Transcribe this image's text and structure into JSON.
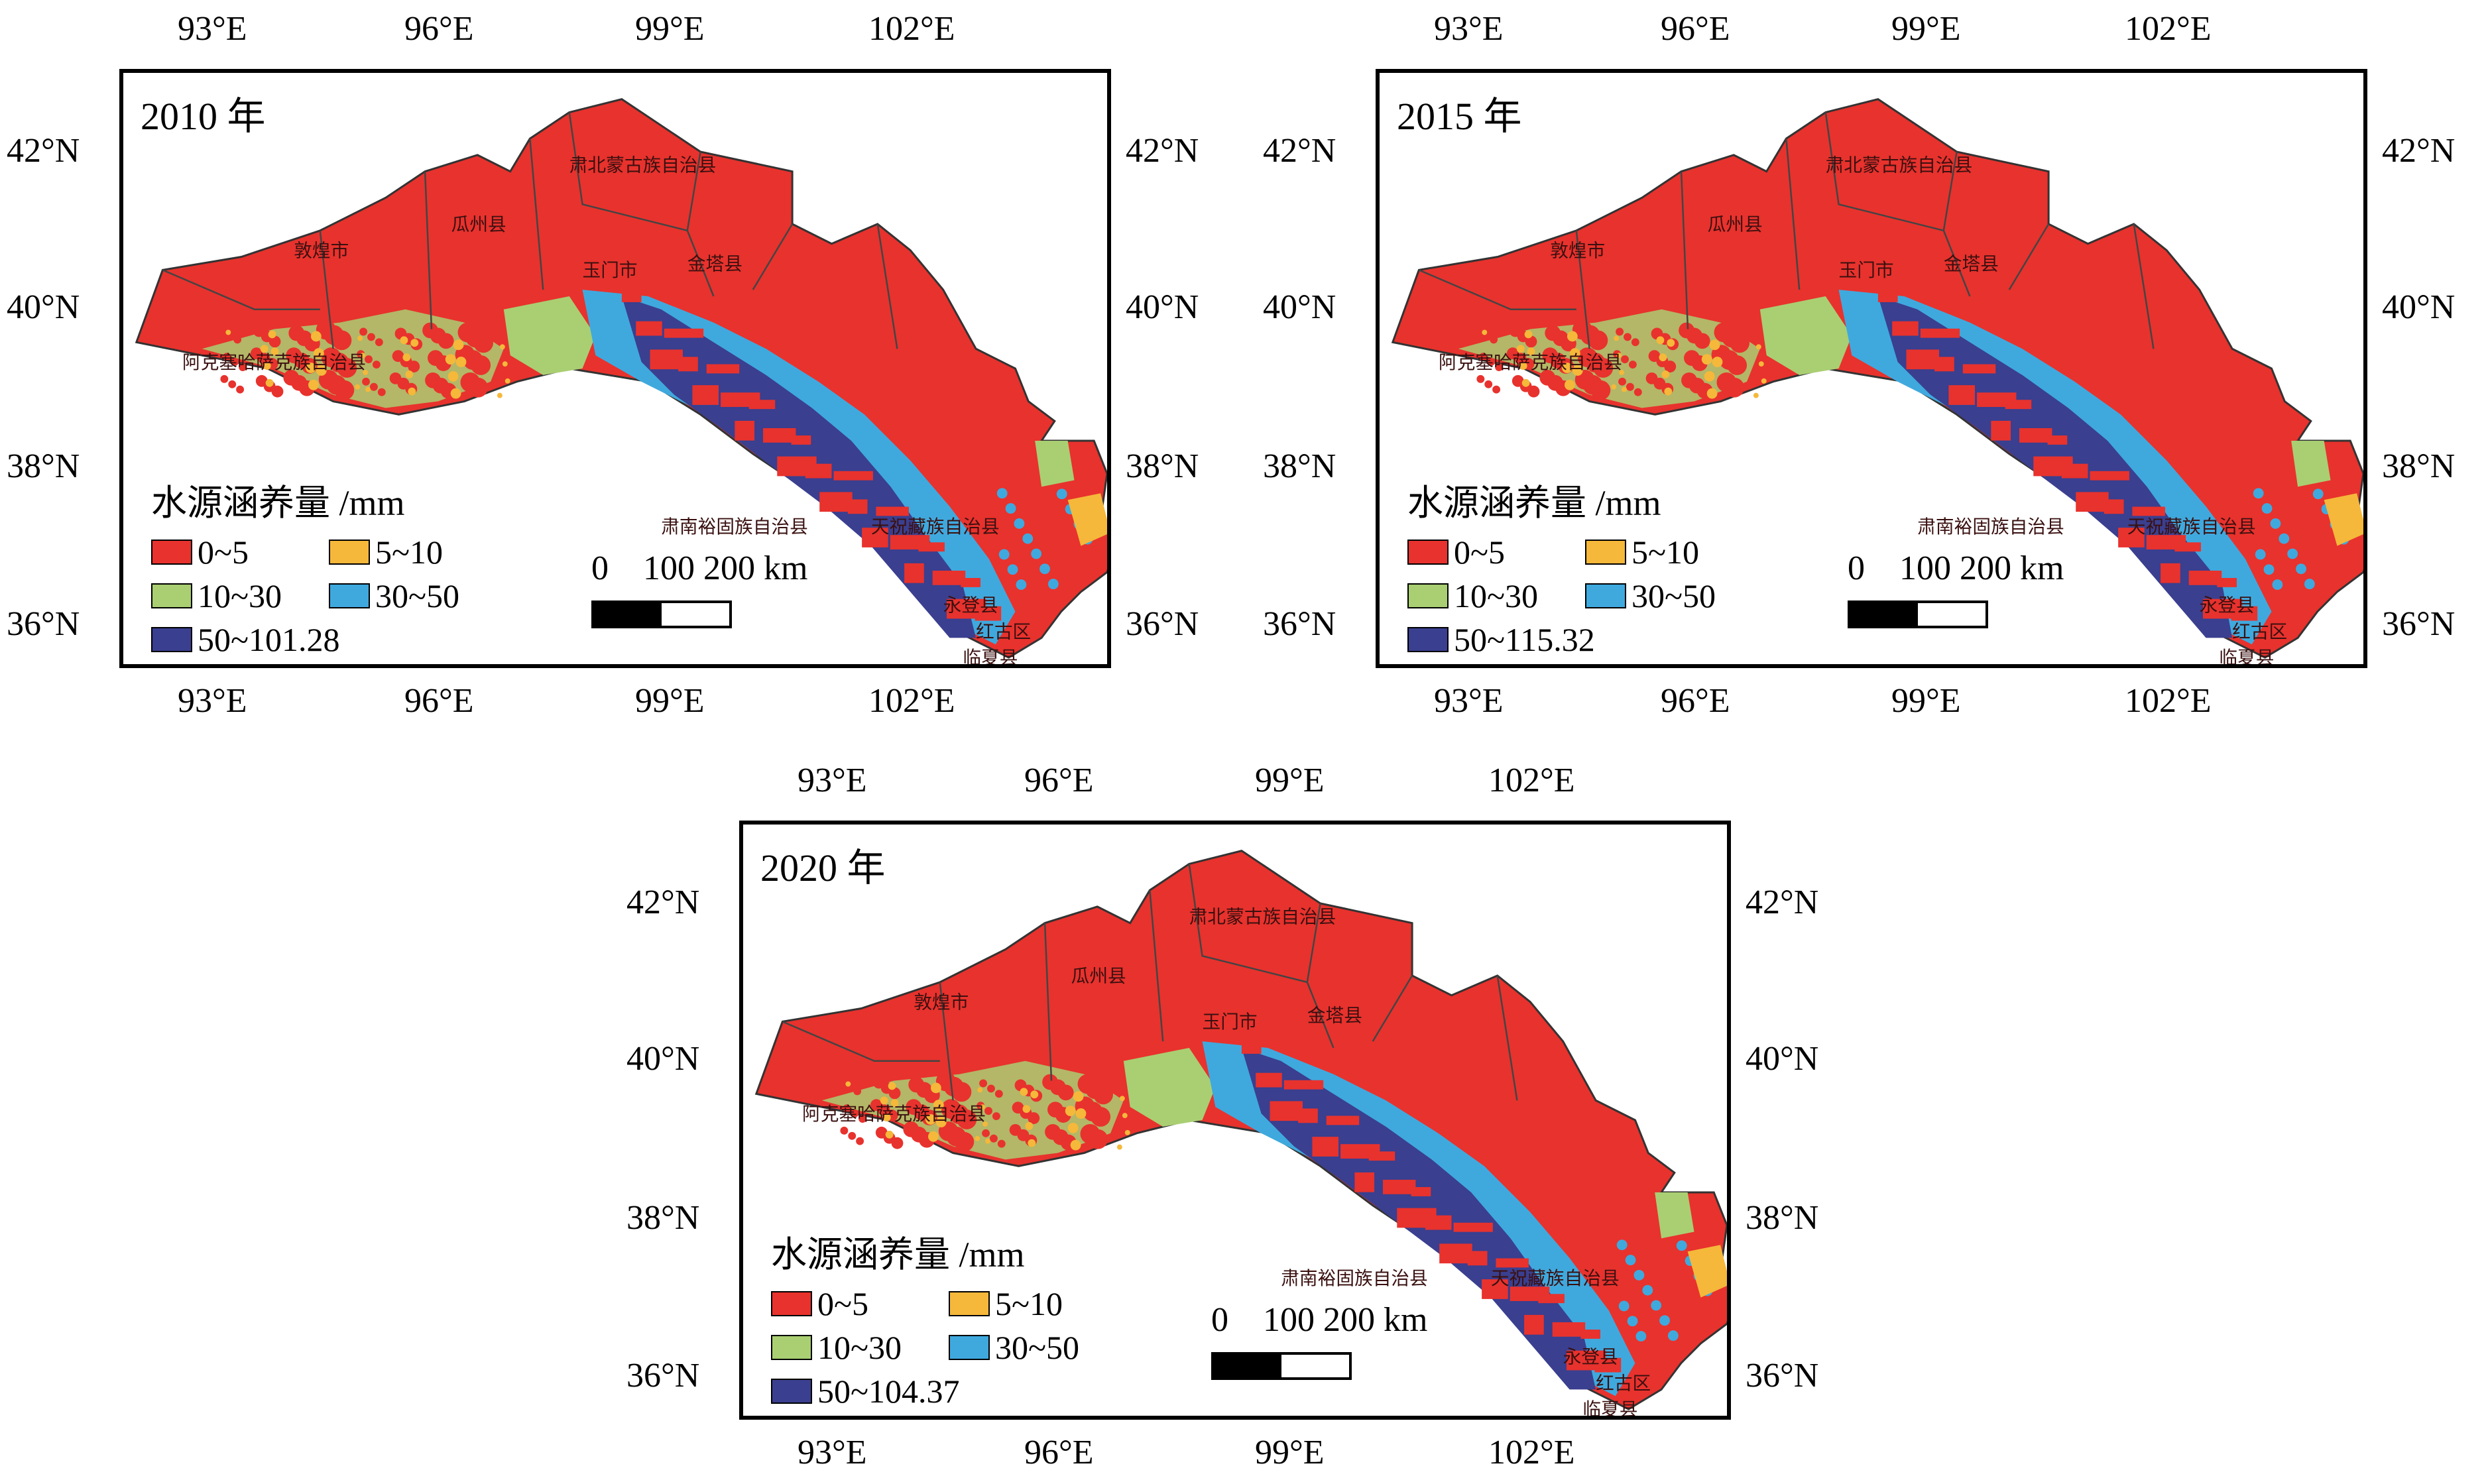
{
  "legend_title": "水源涵养量 /mm",
  "legend_colors": {
    "c0_5": "#e8322d",
    "c5_10": "#f5b83a",
    "c10_30": "#a9cf72",
    "c30_50": "#3fa9de",
    "c50": "#3a3f8f"
  },
  "top_ticks": [
    "93°E",
    "96°E",
    "99°E",
    "102°E"
  ],
  "bottom_ticks": [
    "93°E",
    "96°E",
    "99°E",
    "102°E"
  ],
  "lat_ticks": [
    "42°N",
    "40°N",
    "38°N",
    "36°N"
  ],
  "scalebar": {
    "label": "0    100 200 km"
  },
  "panels": [
    {
      "year": "2010 年",
      "classes": [
        "0~5",
        "5~10",
        "10~30",
        "30~50",
        "50~101.28"
      ]
    },
    {
      "year": "2015 年",
      "classes": [
        "0~5",
        "5~10",
        "10~30",
        "30~50",
        "50~115.32"
      ]
    },
    {
      "year": "2020 年",
      "classes": [
        "0~5",
        "5~10",
        "10~30",
        "30~50",
        "50~104.37"
      ]
    }
  ],
  "map_labels": [
    "肃北蒙古族自治县",
    "瓜州县",
    "敦煌市",
    "玉门市",
    "金塔县",
    "阿克塞哈萨克族自治县",
    "肃南裕固族自治县",
    "天祝藏族自治县",
    "永登县",
    "临夏县",
    "红古区"
  ]
}
